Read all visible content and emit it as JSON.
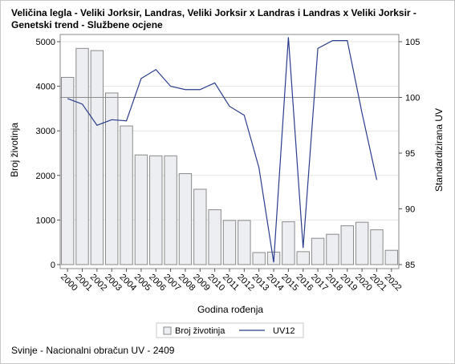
{
  "chart_data": {
    "type": "bar",
    "title": "Veličina legla - Veliki Jorksir, Landras, Veliki Jorksir x Landras i Landras x Veliki Jorksir -",
    "subtitle": "Genetski trend - Službene ocjene",
    "footnote": "Svinje - Nacionalni obračun UV - 2409",
    "xlabel": "Godina rođenja",
    "ylabel": "Broj životinja",
    "y2label": "Standardizirana UV",
    "categories": [
      "2000",
      "2001",
      "2002",
      "2003",
      "2004",
      "2005",
      "2006",
      "2007",
      "2008",
      "2009",
      "2010",
      "2011",
      "2012",
      "2013",
      "2014",
      "2015",
      "2016",
      "2017",
      "2018",
      "2019",
      "2020",
      "2021",
      "2022"
    ],
    "series": [
      {
        "name": "Broj životinja",
        "type": "bar",
        "axis": "left",
        "values": [
          4200,
          4850,
          4800,
          3850,
          3110,
          2460,
          2440,
          2440,
          2040,
          1690,
          1230,
          990,
          990,
          270,
          280,
          960,
          290,
          590,
          680,
          870,
          950,
          780,
          320
        ]
      },
      {
        "name": "UV12",
        "type": "line",
        "axis": "right",
        "values": [
          99.9,
          99.4,
          97.5,
          98.0,
          97.9,
          101.7,
          102.5,
          101.0,
          100.7,
          100.7,
          101.3,
          99.2,
          98.4,
          93.7,
          85.2,
          105.4,
          86.5,
          104.4,
          105.1,
          105.1,
          98.6,
          92.6,
          null
        ]
      }
    ],
    "ylim": [
      0,
      5000
    ],
    "y_ticks": [
      0,
      1000,
      2000,
      3000,
      4000,
      5000
    ],
    "y2lim": [
      85,
      105
    ],
    "y2_ticks": [
      85,
      90,
      95,
      100,
      105
    ],
    "reference_line_y2": 100,
    "legend_position": "bottom",
    "colors": {
      "bar_fill": "#eceef2",
      "bar_stroke": "#8a8a8a",
      "line": "#2a3c8c",
      "ref_line": "#8a8a8a",
      "grid": "#e4e4e4"
    }
  }
}
